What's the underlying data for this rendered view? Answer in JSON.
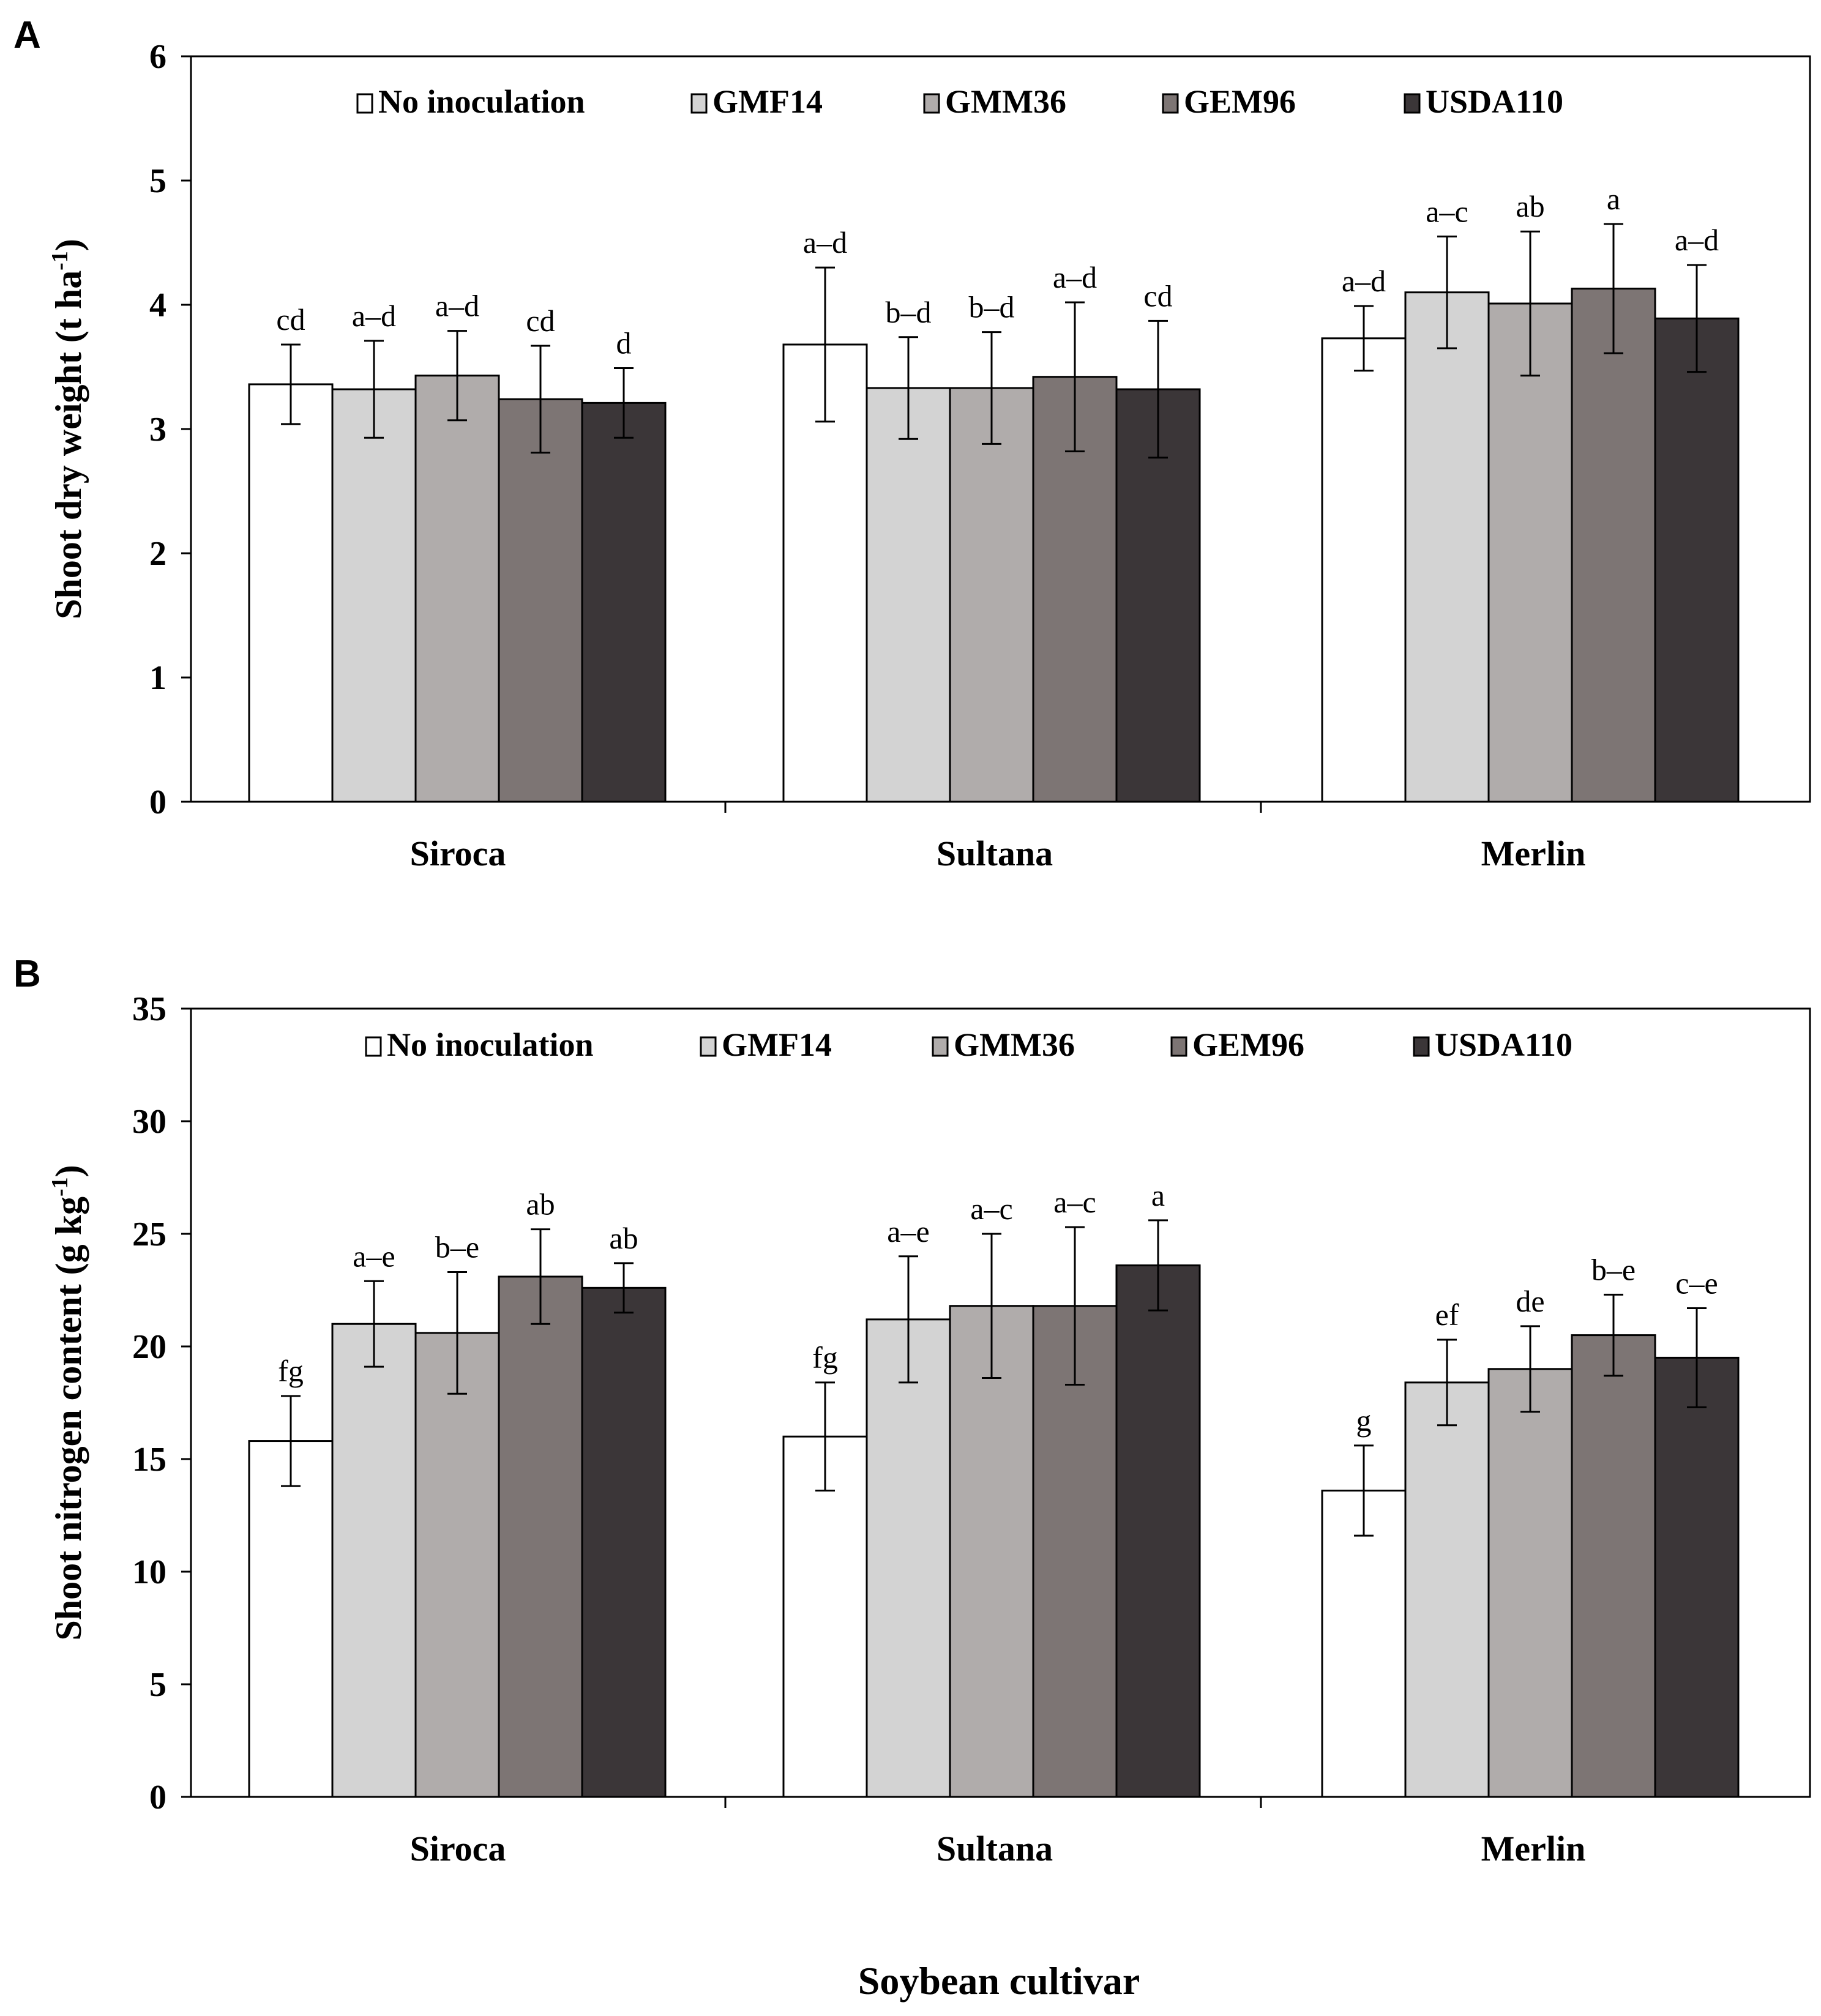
{
  "figure": {
    "xlabel": "Soybean cultivar"
  },
  "chart_data": [
    {
      "type": "bar",
      "panel": "A",
      "ylabel": "Shoot dry weight (t ha",
      "ylabel_sup": "-1",
      "ylabel_close": ")",
      "ylim": [
        0,
        6
      ],
      "yticks": [
        0,
        1,
        2,
        3,
        4,
        5,
        6
      ],
      "categories": [
        "Siroca",
        "Sultana",
        "Merlin"
      ],
      "series": [
        {
          "name": "No inoculation",
          "color": "#ffffff",
          "values": [
            3.36,
            3.68,
            3.73
          ],
          "errors": [
            0.32,
            0.62,
            0.26
          ],
          "labels": [
            "cd",
            "a–d",
            "a–d"
          ]
        },
        {
          "name": "GMF14",
          "color": "#d3d3d3",
          "values": [
            3.32,
            3.33,
            4.1
          ],
          "errors": [
            0.39,
            0.41,
            0.45
          ],
          "labels": [
            "a–d",
            "b–d",
            "a–c"
          ]
        },
        {
          "name": "GMM36",
          "color": "#b0acab",
          "values": [
            3.43,
            3.33,
            4.01
          ],
          "errors": [
            0.36,
            0.45,
            0.58
          ],
          "labels": [
            "a–d",
            "b–d",
            "ab"
          ]
        },
        {
          "name": "GEM96",
          "color": "#7d7574",
          "values": [
            3.24,
            3.42,
            4.13
          ],
          "errors": [
            0.43,
            0.6,
            0.52
          ],
          "labels": [
            "cd",
            "a–d",
            "a"
          ]
        },
        {
          "name": "USDA110",
          "color": "#3b3638",
          "values": [
            3.21,
            3.32,
            3.89
          ],
          "errors": [
            0.28,
            0.55,
            0.43
          ],
          "labels": [
            "d",
            "cd",
            "a–d"
          ]
        }
      ]
    },
    {
      "type": "bar",
      "panel": "B",
      "ylabel": "Shoot nitrogen content (g kg",
      "ylabel_sup": "-1",
      "ylabel_close": ")",
      "ylim": [
        0,
        35
      ],
      "yticks": [
        0,
        5,
        10,
        15,
        20,
        25,
        30,
        35
      ],
      "categories": [
        "Siroca",
        "Sultana",
        "Merlin"
      ],
      "series": [
        {
          "name": "No inoculation",
          "color": "#ffffff",
          "values": [
            15.8,
            16.0,
            13.6
          ],
          "errors": [
            2.0,
            2.4,
            2.0
          ],
          "labels": [
            "fg",
            "fg",
            "g"
          ]
        },
        {
          "name": "GMF14",
          "color": "#d3d3d3",
          "values": [
            21.0,
            21.2,
            18.4
          ],
          "errors": [
            1.9,
            2.8,
            1.9
          ],
          "labels": [
            "a–e",
            "a–e",
            "ef"
          ]
        },
        {
          "name": "GMM36",
          "color": "#b0acab",
          "values": [
            20.6,
            21.8,
            19.0
          ],
          "errors": [
            2.7,
            3.2,
            1.9
          ],
          "labels": [
            "b–e",
            "a–c",
            "de"
          ]
        },
        {
          "name": "GEM96",
          "color": "#7d7574",
          "values": [
            23.1,
            21.8,
            20.5
          ],
          "errors": [
            2.1,
            3.5,
            1.8
          ],
          "labels": [
            "ab",
            "a–c",
            "b–e"
          ]
        },
        {
          "name": "USDA110",
          "color": "#3b3638",
          "values": [
            22.6,
            23.6,
            19.5
          ],
          "errors": [
            1.1,
            2.0,
            2.2
          ],
          "labels": [
            "ab",
            "a",
            "c–e"
          ]
        }
      ]
    }
  ]
}
